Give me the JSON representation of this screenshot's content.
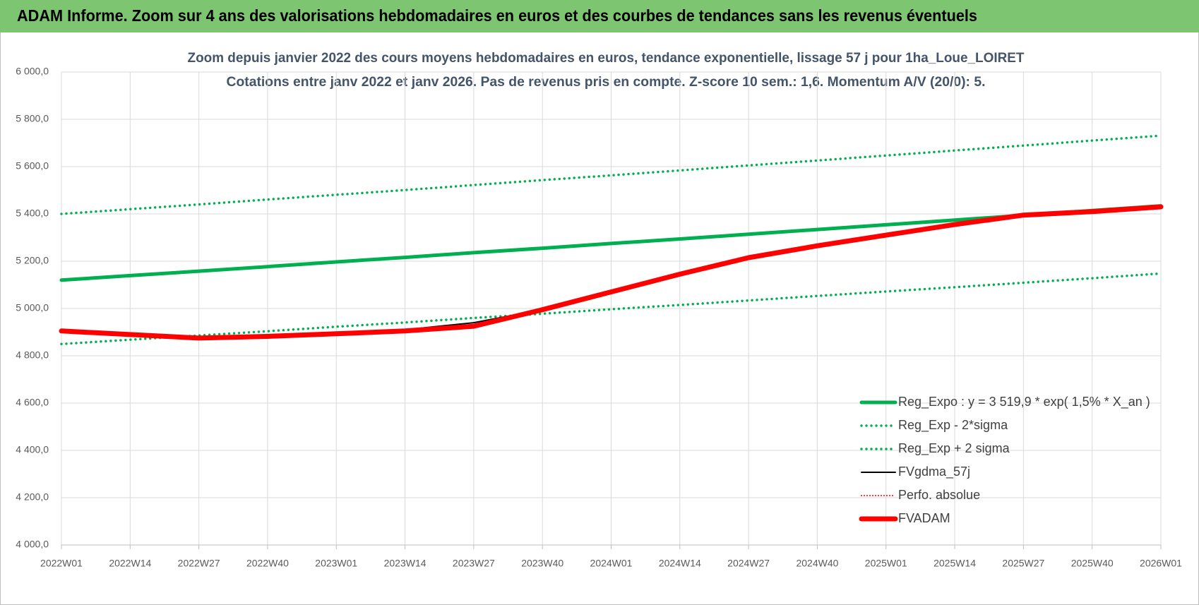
{
  "chart_data": {
    "type": "line",
    "banner": "ADAM Informe. Zoom sur 4 ans des valorisations hebdomadaires en euros et des courbes de tendances sans les revenus éventuels",
    "title": "Zoom depuis janvier 2022 des cours moyens hebdomadaires en euros, tendance exponentielle, lissage 57 j pour 1ha_Loue_LOIRET",
    "subtitle": "Cotations entre janv 2022 et janv 2026. Pas de revenus pris en compte. Z-score 10 sem.: 1,6. Momentum A/V (20/0): 5.",
    "categories": [
      "2022W01",
      "2022W14",
      "2022W27",
      "2022W40",
      "2023W01",
      "2023W14",
      "2023W27",
      "2023W40",
      "2024W01",
      "2024W14",
      "2024W27",
      "2024W40",
      "2025W01",
      "2025W14",
      "2025W27",
      "2025W40",
      "2026W01"
    ],
    "ylim": [
      4000,
      6000
    ],
    "yticks": [
      {
        "value": 4000,
        "label": "4 000,0"
      },
      {
        "value": 4200,
        "label": "4 200,0"
      },
      {
        "value": 4400,
        "label": "4 400,0"
      },
      {
        "value": 4600,
        "label": "4 600,0"
      },
      {
        "value": 4800,
        "label": "4 800,0"
      },
      {
        "value": 5000,
        "label": "5 000,0"
      },
      {
        "value": 5200,
        "label": "5 200,0"
      },
      {
        "value": 5400,
        "label": "5 400,0"
      },
      {
        "value": 5600,
        "label": "5 600,0"
      },
      {
        "value": 5800,
        "label": "5 800,0"
      },
      {
        "value": 6000,
        "label": "6 000,0"
      }
    ],
    "grid": true,
    "legend": "lower right",
    "series": [
      {
        "name": "Reg_Expo : y = 3 519,9 * exp( 1,5% *  X_an )",
        "color": "#00b050",
        "style": "solid",
        "weight": "thick",
        "values": [
          5120,
          5139,
          5158,
          5177,
          5197,
          5216,
          5236,
          5255,
          5275,
          5294,
          5314,
          5334,
          5354,
          5374,
          5394,
          5414,
          5434
        ]
      },
      {
        "name": "Reg_Exp - 2*sigma",
        "color": "#00b050",
        "style": "dotted",
        "weight": "medium",
        "values": [
          4850,
          4868,
          4886,
          4904,
          4923,
          4941,
          4960,
          4978,
          4997,
          5015,
          5034,
          5053,
          5072,
          5090,
          5109,
          5128,
          5148
        ]
      },
      {
        "name": "Reg_Exp + 2 sigma",
        "color": "#00b050",
        "style": "dotted",
        "weight": "medium",
        "values": [
          5400,
          5420,
          5440,
          5461,
          5481,
          5501,
          5522,
          5543,
          5563,
          5584,
          5605,
          5626,
          5647,
          5668,
          5689,
          5710,
          5731
        ]
      },
      {
        "name": "FVgdma_57j",
        "color": "#000000",
        "style": "solid",
        "weight": "thin",
        "values": [
          4905,
          4890,
          4878,
          4882,
          4893,
          4910,
          4940,
          4995,
          5068,
          5143,
          5212,
          5265,
          5310,
          5353,
          5392,
          5410,
          5430
        ]
      },
      {
        "name": "Perfo. absolue",
        "color": "#ff0000",
        "style": "dotted",
        "weight": "thin",
        "values": [
          4905,
          4890,
          4875,
          4882,
          4893,
          4905,
          4925,
          4995,
          5070,
          5145,
          5215,
          5265,
          5310,
          5355,
          5395,
          5410,
          5430
        ]
      },
      {
        "name": "FVADAM",
        "color": "#ff0000",
        "style": "solid",
        "weight": "heavy",
        "values": [
          4905,
          4890,
          4875,
          4882,
          4893,
          4905,
          4925,
          4995,
          5070,
          5145,
          5215,
          5265,
          5310,
          5355,
          5395,
          5410,
          5430
        ]
      }
    ]
  }
}
